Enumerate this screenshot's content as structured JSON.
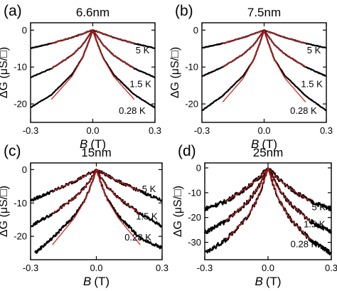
{
  "figure": {
    "y_axis_label": "ΔG (μS/□)",
    "x_axis_label_symbol": "B",
    "x_axis_label_unit": "(T)"
  },
  "chart_data": [
    {
      "panel": "(a)",
      "type": "line",
      "title": "6.6nm",
      "xlim": [
        -0.3,
        0.3
      ],
      "ylim": [
        -25,
        2
      ],
      "xticks": [
        -0.3,
        0,
        0.3
      ],
      "yticks": [
        0,
        -10,
        -20
      ],
      "xtick_labels": [
        "-0.3",
        "0.0",
        "0.3"
      ],
      "ytick_labels": [
        "0",
        "-10",
        "-20"
      ],
      "noise": 0.1,
      "series": [
        {
          "name": "5 K",
          "label_x": 0.24,
          "label_y": -6.3,
          "x": [
            -0.3,
            -0.2,
            -0.1,
            -0.05,
            -0.02,
            0,
            0.02,
            0.05,
            0.1,
            0.2,
            0.3
          ],
          "y": [
            -4.9,
            -3.6,
            -2.0,
            -1.0,
            -0.3,
            0,
            -0.3,
            -1.0,
            -2.0,
            -3.6,
            -4.9
          ],
          "fit_x": [
            -0.2,
            -0.1,
            -0.05,
            -0.02,
            0,
            0.02,
            0.05,
            0.1,
            0.2
          ],
          "fit_y": [
            -3.6,
            -2.0,
            -1.0,
            -0.3,
            0,
            -0.3,
            -1.0,
            -2.0,
            -3.6
          ]
        },
        {
          "name": "1.5 K",
          "label_x": 0.23,
          "label_y": -15.5,
          "x": [
            -0.3,
            -0.2,
            -0.1,
            -0.05,
            -0.02,
            0,
            0.02,
            0.05,
            0.1,
            0.2,
            0.3
          ],
          "y": [
            -12.8,
            -10.4,
            -6.8,
            -4.0,
            -1.5,
            0,
            -1.5,
            -4.0,
            -6.8,
            -10.4,
            -12.8
          ],
          "fit_x": [
            -0.2,
            -0.1,
            -0.05,
            -0.02,
            0,
            0.02,
            0.05,
            0.1,
            0.2
          ],
          "fit_y": [
            -10.4,
            -6.8,
            -4.0,
            -1.5,
            0,
            -1.5,
            -4.0,
            -6.8,
            -10.4
          ]
        },
        {
          "name": "0.28 K",
          "label_x": 0.19,
          "label_y": -22.7,
          "x": [
            -0.3,
            -0.2,
            -0.1,
            -0.05,
            -0.02,
            0,
            0.02,
            0.05,
            0.1,
            0.2,
            0.3
          ],
          "y": [
            -21.0,
            -17.5,
            -12.0,
            -7.5,
            -3.2,
            0,
            -3.2,
            -7.5,
            -12.0,
            -17.5,
            -21.0
          ],
          "fit_x": [
            -0.2,
            -0.1,
            -0.05,
            -0.02,
            0,
            0.02,
            0.05,
            0.1,
            0.2
          ],
          "fit_y": [
            -18.8,
            -12.5,
            -7.6,
            -3.2,
            0,
            -3.2,
            -7.6,
            -12.5,
            -18.8
          ]
        }
      ]
    },
    {
      "panel": "(b)",
      "type": "line",
      "title": "7.5nm",
      "xlim": [
        -0.3,
        0.3
      ],
      "ylim": [
        -25,
        2
      ],
      "xticks": [
        -0.3,
        0,
        0.3
      ],
      "yticks": [
        0,
        -10,
        -20
      ],
      "xtick_labels": [
        "-0.3",
        "0.0",
        "0.3"
      ],
      "ytick_labels": [
        "0",
        "-10",
        "-20"
      ],
      "noise": 0.1,
      "series": [
        {
          "name": "5 K",
          "label_x": 0.24,
          "label_y": -6.3,
          "x": [
            -0.3,
            -0.2,
            -0.1,
            -0.05,
            -0.02,
            0,
            0.02,
            0.05,
            0.1,
            0.2,
            0.3
          ],
          "y": [
            -4.8,
            -3.6,
            -2.0,
            -1.0,
            -0.4,
            0,
            -0.4,
            -1.0,
            -2.0,
            -3.6,
            -4.8
          ],
          "fit_x": [
            -0.2,
            -0.1,
            -0.05,
            -0.02,
            0,
            0.02,
            0.05,
            0.1,
            0.2
          ],
          "fit_y": [
            -3.6,
            -2.0,
            -1.0,
            -0.4,
            0,
            -0.4,
            -1.0,
            -2.0,
            -3.6
          ]
        },
        {
          "name": "1.5 K",
          "label_x": 0.23,
          "label_y": -15.5,
          "x": [
            -0.3,
            -0.2,
            -0.1,
            -0.05,
            -0.02,
            0,
            0.02,
            0.05,
            0.1,
            0.2,
            0.3
          ],
          "y": [
            -12.5,
            -10.0,
            -6.5,
            -4.0,
            -1.6,
            0,
            -1.6,
            -4.0,
            -6.5,
            -10.0,
            -12.5
          ],
          "fit_x": [
            -0.2,
            -0.1,
            -0.05,
            -0.02,
            0,
            0.02,
            0.05,
            0.1,
            0.2
          ],
          "fit_y": [
            -10.0,
            -6.5,
            -4.0,
            -1.6,
            0,
            -1.6,
            -4.0,
            -6.5,
            -10.0
          ]
        },
        {
          "name": "0.28 K",
          "label_x": 0.19,
          "label_y": -22.7,
          "x": [
            -0.3,
            -0.2,
            -0.1,
            -0.05,
            -0.02,
            0,
            0.02,
            0.05,
            0.1,
            0.2,
            0.3
          ],
          "y": [
            -21.8,
            -17.8,
            -12.3,
            -8.0,
            -3.4,
            0,
            -3.4,
            -8.0,
            -12.3,
            -17.8,
            -21.8
          ],
          "fit_x": [
            -0.2,
            -0.1,
            -0.05,
            -0.02,
            0,
            0.02,
            0.05,
            0.1,
            0.2
          ],
          "fit_y": [
            -19.5,
            -13.0,
            -8.0,
            -3.4,
            0,
            -3.4,
            -8.0,
            -13.0,
            -19.5
          ]
        }
      ]
    },
    {
      "panel": "(c)",
      "type": "line",
      "title": "15nm",
      "xlim": [
        -0.3,
        0.3
      ],
      "ylim": [
        -27,
        2
      ],
      "xticks": [
        -0.3,
        0,
        0.3
      ],
      "yticks": [
        0,
        -10,
        -20
      ],
      "xtick_labels": [
        "-0.3",
        "0.0",
        "0.3"
      ],
      "ytick_labels": [
        "0",
        "-10",
        "-20"
      ],
      "noise": 0.45,
      "series": [
        {
          "name": "5 K",
          "label_x": 0.24,
          "label_y": -6.7,
          "x": [
            -0.3,
            -0.2,
            -0.1,
            -0.05,
            -0.02,
            0,
            0.02,
            0.05,
            0.1,
            0.2,
            0.3
          ],
          "y": [
            -9.3,
            -6.5,
            -3.5,
            -1.8,
            -0.7,
            0,
            -0.7,
            -1.8,
            -3.5,
            -6.5,
            -9.3
          ],
          "fit_x": [
            -0.2,
            -0.1,
            -0.05,
            -0.02,
            0,
            0.02,
            0.05,
            0.1,
            0.2
          ],
          "fit_y": [
            -6.5,
            -3.5,
            -1.8,
            -0.7,
            0,
            -0.7,
            -1.8,
            -3.5,
            -6.5
          ]
        },
        {
          "name": "1.5 K",
          "label_x": 0.23,
          "label_y": -15.0,
          "x": [
            -0.3,
            -0.2,
            -0.1,
            -0.05,
            -0.02,
            0,
            0.02,
            0.05,
            0.1,
            0.2,
            0.3
          ],
          "y": [
            -17.0,
            -13.2,
            -8.5,
            -5.2,
            -2.3,
            0,
            -2.3,
            -5.2,
            -8.5,
            -13.2,
            -17.0
          ],
          "fit_x": [
            -0.2,
            -0.1,
            -0.05,
            -0.02,
            0,
            0.02,
            0.05,
            0.1,
            0.2
          ],
          "fit_y": [
            -13.2,
            -8.5,
            -5.2,
            -2.3,
            0,
            -2.3,
            -5.2,
            -8.5,
            -13.2
          ]
        },
        {
          "name": "0.28 K",
          "label_x": 0.19,
          "label_y": -21.2,
          "x": [
            -0.28,
            -0.2,
            -0.1,
            -0.05,
            -0.02,
            0,
            0.02,
            0.05,
            0.1,
            0.2,
            0.3
          ],
          "y": [
            -25.0,
            -20.5,
            -13.8,
            -8.8,
            -3.8,
            0,
            -3.8,
            -8.8,
            -13.8,
            -20.5,
            -23.5
          ],
          "fit_x": [
            -0.2,
            -0.1,
            -0.05,
            -0.02,
            0,
            0.02,
            0.05,
            0.1,
            0.2
          ],
          "fit_y": [
            -22.5,
            -14.5,
            -9.0,
            -3.8,
            0,
            -3.8,
            -9.0,
            -14.5,
            -22.5
          ]
        }
      ]
    },
    {
      "panel": "(d)",
      "type": "line",
      "title": "25nm",
      "xlim": [
        -0.3,
        0.3
      ],
      "ylim": [
        -37,
        2
      ],
      "xticks": [
        -0.3,
        0,
        0.3
      ],
      "yticks": [
        0,
        -10,
        -20,
        -30
      ],
      "xtick_labels": [
        "-0.3",
        "0.0",
        "0.3"
      ],
      "ytick_labels": [
        "0",
        "-10",
        "-20",
        "-30"
      ],
      "noise": 0.9,
      "series": [
        {
          "name": "5 K",
          "label_x": 0.24,
          "label_y": -17.0,
          "x": [
            -0.3,
            -0.2,
            -0.1,
            -0.05,
            -0.02,
            0,
            0.02,
            0.05,
            0.1,
            0.2,
            0.3
          ],
          "y": [
            -16.5,
            -13.5,
            -8.0,
            -4.5,
            -1.8,
            0,
            -1.8,
            -4.5,
            -8.0,
            -13.5,
            -16.5
          ],
          "fit_x": [
            -0.2,
            -0.1,
            -0.05,
            -0.02,
            0,
            0.02,
            0.05,
            0.1,
            0.2
          ],
          "fit_y": [
            -13.5,
            -8.0,
            -4.5,
            -1.8,
            0,
            -1.8,
            -4.5,
            -8.0,
            -13.5
          ]
        },
        {
          "name": "1.5 K",
          "label_x": 0.22,
          "label_y": -24.0,
          "x": [
            -0.3,
            -0.2,
            -0.1,
            -0.05,
            -0.02,
            0,
            0.02,
            0.05,
            0.1,
            0.2,
            0.3
          ],
          "y": [
            -26.0,
            -21.5,
            -14.0,
            -8.5,
            -3.5,
            0,
            -3.5,
            -8.5,
            -14.0,
            -21.5,
            -26.0
          ],
          "fit_x": [
            -0.2,
            -0.1,
            -0.05,
            -0.02,
            0,
            0.02,
            0.05,
            0.1,
            0.2
          ],
          "fit_y": [
            -21.5,
            -14.0,
            -8.5,
            -3.5,
            0,
            -3.5,
            -8.5,
            -14.0,
            -21.5
          ]
        },
        {
          "name": "0.28 K",
          "label_x": 0.17,
          "label_y": -32.0,
          "x": [
            -0.3,
            -0.2,
            -0.1,
            -0.05,
            -0.02,
            0,
            0.02,
            0.05,
            0.1,
            0.2,
            0.3
          ],
          "y": [
            -34.5,
            -29.0,
            -20.0,
            -12.5,
            -5.5,
            0,
            -5.5,
            -12.5,
            -20.0,
            -29.0,
            -34.5
          ],
          "fit_x": [
            -0.2,
            -0.1,
            -0.05,
            -0.02,
            0,
            0.02,
            0.05,
            0.1,
            0.2
          ],
          "fit_y": [
            -29.0,
            -20.0,
            -12.5,
            -5.5,
            0,
            -5.5,
            -12.5,
            -20.0,
            -29.0
          ]
        }
      ]
    }
  ]
}
